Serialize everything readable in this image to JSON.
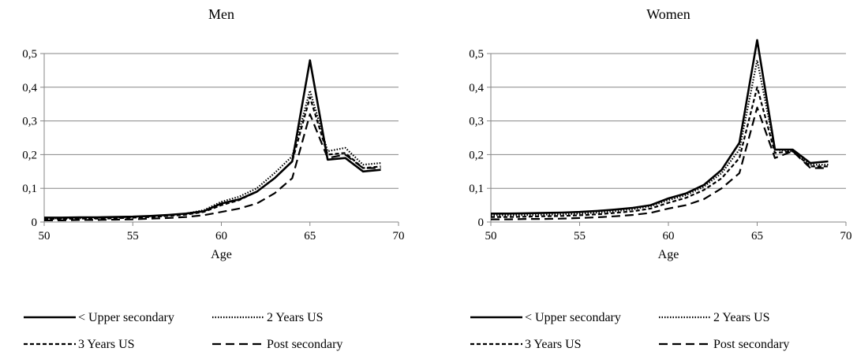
{
  "chart_data": [
    {
      "type": "line",
      "title": "Men",
      "xlabel": "Age",
      "ylabel": "",
      "xlim": [
        50,
        70
      ],
      "ylim": [
        0,
        0.5
      ],
      "xticks": [
        "50",
        "55",
        "60",
        "65",
        "70"
      ],
      "yticks": [
        "0",
        "0,1",
        "0,2",
        "0,3",
        "0,4",
        "0,5"
      ],
      "grid": "horizontal",
      "legend": "bottom",
      "x": [
        50,
        51,
        52,
        53,
        54,
        55,
        56,
        57,
        58,
        59,
        60,
        61,
        62,
        63,
        64,
        65,
        66,
        67,
        68,
        69
      ],
      "series": [
        {
          "name": "< Upper secondary",
          "values": [
            0.013,
            0.013,
            0.014,
            0.014,
            0.015,
            0.016,
            0.018,
            0.021,
            0.025,
            0.032,
            0.055,
            0.067,
            0.09,
            0.13,
            0.18,
            0.48,
            0.185,
            0.19,
            0.15,
            0.155
          ]
        },
        {
          "name": "2 Years US",
          "values": [
            0.01,
            0.011,
            0.011,
            0.012,
            0.013,
            0.015,
            0.017,
            0.02,
            0.025,
            0.035,
            0.06,
            0.075,
            0.1,
            0.145,
            0.195,
            0.39,
            0.21,
            0.22,
            0.17,
            0.175
          ]
        },
        {
          "name": "3 Years US",
          "values": [
            0.009,
            0.009,
            0.01,
            0.01,
            0.011,
            0.013,
            0.015,
            0.018,
            0.022,
            0.03,
            0.05,
            0.065,
            0.09,
            0.13,
            0.18,
            0.37,
            0.2,
            0.205,
            0.16,
            0.165
          ]
        },
        {
          "name": "Post secondary",
          "values": [
            0.005,
            0.005,
            0.006,
            0.006,
            0.007,
            0.008,
            0.01,
            0.012,
            0.015,
            0.02,
            0.03,
            0.04,
            0.055,
            0.085,
            0.13,
            0.32,
            0.19,
            0.2,
            0.16,
            0.16
          ]
        }
      ]
    },
    {
      "type": "line",
      "title": "Women",
      "xlabel": "Age",
      "ylabel": "",
      "xlim": [
        50,
        70
      ],
      "ylim": [
        0,
        0.5
      ],
      "xticks": [
        "50",
        "55",
        "60",
        "65",
        "70"
      ],
      "yticks": [
        "0",
        "0,1",
        "0,2",
        "0,3",
        "0,4",
        "0,5"
      ],
      "grid": "horizontal",
      "legend": "bottom",
      "x": [
        50,
        51,
        52,
        53,
        54,
        55,
        56,
        57,
        58,
        59,
        60,
        61,
        62,
        63,
        64,
        65,
        66,
        67,
        68,
        69
      ],
      "series": [
        {
          "name": "< Upper secondary",
          "values": [
            0.025,
            0.025,
            0.026,
            0.027,
            0.028,
            0.03,
            0.033,
            0.037,
            0.042,
            0.05,
            0.07,
            0.085,
            0.11,
            0.155,
            0.235,
            0.54,
            0.215,
            0.215,
            0.175,
            0.18
          ]
        },
        {
          "name": "2 Years US",
          "values": [
            0.02,
            0.02,
            0.021,
            0.022,
            0.023,
            0.025,
            0.028,
            0.032,
            0.038,
            0.047,
            0.065,
            0.08,
            0.105,
            0.145,
            0.215,
            0.48,
            0.215,
            0.21,
            0.17,
            0.17
          ]
        },
        {
          "name": "3 Years US",
          "values": [
            0.015,
            0.015,
            0.016,
            0.017,
            0.018,
            0.02,
            0.023,
            0.027,
            0.032,
            0.04,
            0.057,
            0.072,
            0.095,
            0.13,
            0.19,
            0.4,
            0.205,
            0.21,
            0.165,
            0.165
          ]
        },
        {
          "name": "Post secondary",
          "values": [
            0.008,
            0.008,
            0.009,
            0.009,
            0.01,
            0.012,
            0.014,
            0.017,
            0.021,
            0.027,
            0.04,
            0.05,
            0.068,
            0.1,
            0.145,
            0.34,
            0.19,
            0.21,
            0.16,
            0.16
          ]
        }
      ]
    }
  ],
  "legend_items": [
    {
      "label": "< Upper secondary",
      "style": "solid"
    },
    {
      "label": "2 Years US",
      "style": "dotted"
    },
    {
      "label": "3 Years US",
      "style": "short-dash"
    },
    {
      "label": "Post secondary",
      "style": "long-dash"
    }
  ],
  "colors": {
    "line": "#000000",
    "grid": "#868686",
    "axis": "#868686"
  }
}
